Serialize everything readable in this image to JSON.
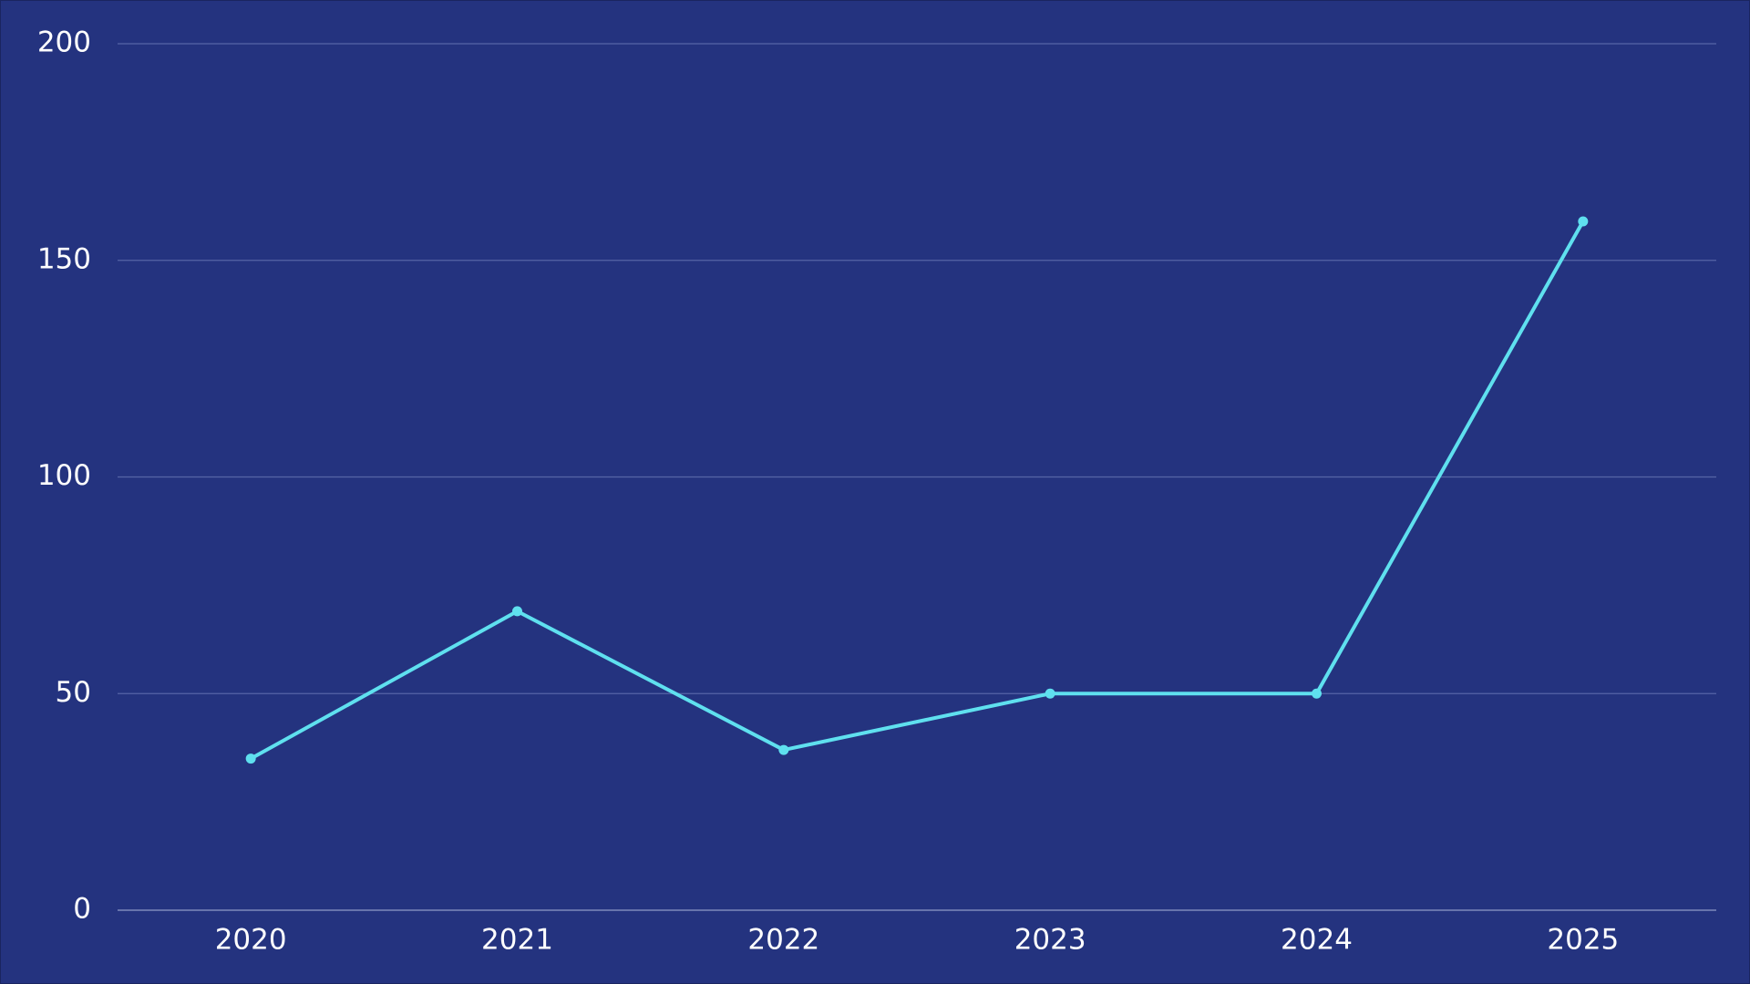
{
  "chart_data": {
    "type": "line",
    "categories": [
      "2020",
      "2021",
      "2022",
      "2023",
      "2024",
      "2025"
    ],
    "series": [
      {
        "color": "#5fe0ef",
        "values": [
          35,
          69,
          37,
          50,
          50,
          159
        ]
      }
    ],
    "ylim": [
      0,
      200
    ],
    "yticks": [
      0,
      50,
      100,
      150,
      200
    ],
    "grid": true
  }
}
